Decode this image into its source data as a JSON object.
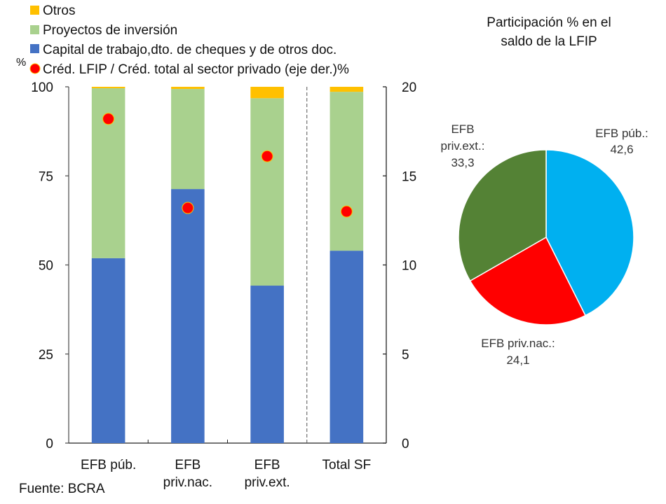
{
  "chart_data": [
    {
      "type": "bar",
      "stacked": true,
      "categories": [
        [
          "EFB púb."
        ],
        [
          "EFB",
          "priv.nac."
        ],
        [
          "EFB",
          "priv.ext."
        ],
        [
          "Total SF"
        ]
      ],
      "series": [
        {
          "name": "Capital de trabajo,dto. de cheques y de otros doc.",
          "color": "#4472C4",
          "values": [
            51.9,
            71.3,
            44.2,
            54.0
          ]
        },
        {
          "name": "Proyectos de inversión",
          "color": "#A9D18E",
          "values": [
            47.7,
            28.1,
            52.6,
            44.6
          ]
        },
        {
          "name": "Otros",
          "color": "#FFC000",
          "values": [
            0.4,
            0.6,
            3.2,
            1.4
          ]
        }
      ],
      "secondary_series": {
        "name": "Créd. LFIP / Créd. total  al sector privado (eje der.)",
        "type": "scatter",
        "axis": "right",
        "color": "#FF0000",
        "values": [
          18.2,
          13.2,
          16.1,
          13.0
        ]
      },
      "legend": {
        "placement": "top-left",
        "items": [
          {
            "label": "Otros",
            "color": "#FFC000",
            "marker": "square"
          },
          {
            "label": "Proyectos de inversión",
            "color": "#A9D18E",
            "marker": "square"
          },
          {
            "label": "Capital de trabajo,dto. de cheques y de otros doc.",
            "color": "#4472C4",
            "marker": "square"
          },
          {
            "label": "Créd. LFIP / Créd. total  al sector privado (eje der.)",
            "color": "#FF0000",
            "marker": "circle"
          }
        ]
      },
      "ylabel_left": "%",
      "ylabel_right": "%",
      "ylim": [
        0,
        100
      ],
      "yticks": [
        "0",
        "25",
        "50",
        "75",
        "100"
      ],
      "ylim_right": [
        0,
        20
      ],
      "yticks_right": [
        "0",
        "5",
        "10",
        "15",
        "20"
      ],
      "grid": false,
      "separator_before_category": 3,
      "source": "Fuente: BCRA"
    },
    {
      "type": "pie",
      "title": [
        "Participación % en el",
        "saldo de la LFIP"
      ],
      "slices": [
        {
          "label": "EFB púb.:",
          "value": 42.6,
          "value_label": "42,6",
          "color": "#00B0F0"
        },
        {
          "label": "EFB priv.nac.:",
          "value": 24.1,
          "value_label": "24,1",
          "color": "#FF0000"
        },
        {
          "label_lines": [
            "EFB",
            "priv.ext.:"
          ],
          "value": 33.3,
          "value_label": "33,3",
          "color": "#548235"
        }
      ]
    }
  ]
}
